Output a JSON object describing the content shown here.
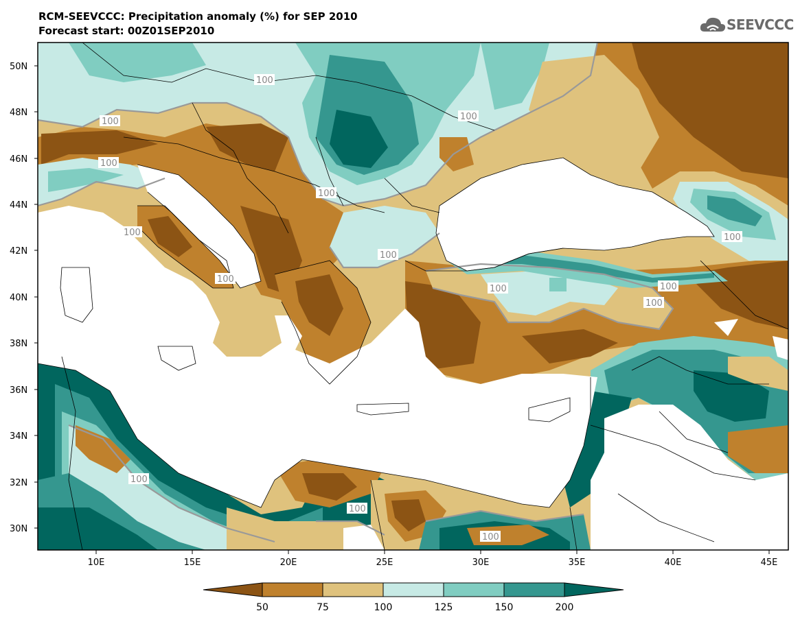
{
  "title": {
    "line1": "RCM-SEEVCCC: Precipitation anomaly (%) for SEP 2010",
    "line2": "Forecast start: 00Z01SEP2010"
  },
  "logo": {
    "text": "SEEVCCC"
  },
  "map": {
    "lat_labels": [
      "50N",
      "48N",
      "46N",
      "44N",
      "42N",
      "40N",
      "38N",
      "36N",
      "34N",
      "32N",
      "30N"
    ],
    "lon_labels": [
      "10E",
      "15E",
      "20E",
      "25E",
      "30E",
      "35E",
      "40E",
      "45E"
    ],
    "contour_labels": [
      "100",
      "100",
      "100",
      "100",
      "100",
      "100",
      "100",
      "100",
      "100",
      "100",
      "100",
      "100",
      "100",
      "100",
      "100",
      "100"
    ]
  },
  "colorbar": {
    "labels": [
      "50",
      "75",
      "100",
      "125",
      "150",
      "200"
    ],
    "colors": {
      "below_50": "#8c5414",
      "50_75": "#bf812d",
      "75_100": "#dfc27d",
      "100_125": "#c7eae5",
      "125_150": "#80cdc1",
      "150_200": "#35978f",
      "above_200": "#01665e"
    }
  }
}
